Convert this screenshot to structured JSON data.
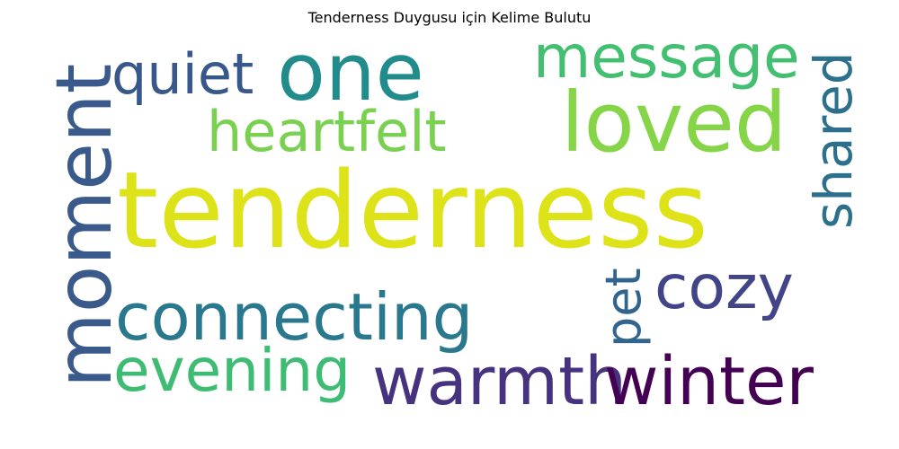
{
  "title": "Tenderness Duygusu için Kelime Bulutu",
  "words": [
    {
      "text": "tenderness",
      "color": "#dde318"
    },
    {
      "text": "loved",
      "color": "#86d549"
    },
    {
      "text": "one",
      "color": "#228c8d"
    },
    {
      "text": "message",
      "color": "#43bf71"
    },
    {
      "text": "quiet",
      "color": "#38588c"
    },
    {
      "text": "heartfelt",
      "color": "#7ad151"
    },
    {
      "text": "moment",
      "color": "#3b5a8c"
    },
    {
      "text": "shared",
      "color": "#2d708e"
    },
    {
      "text": "connecting",
      "color": "#2a788e"
    },
    {
      "text": "cozy",
      "color": "#414487"
    },
    {
      "text": "pet",
      "color": "#32658e"
    },
    {
      "text": "evening",
      "color": "#3fbc73"
    },
    {
      "text": "warmth",
      "color": "#46327e"
    },
    {
      "text": "winter",
      "color": "#440154"
    }
  ]
}
